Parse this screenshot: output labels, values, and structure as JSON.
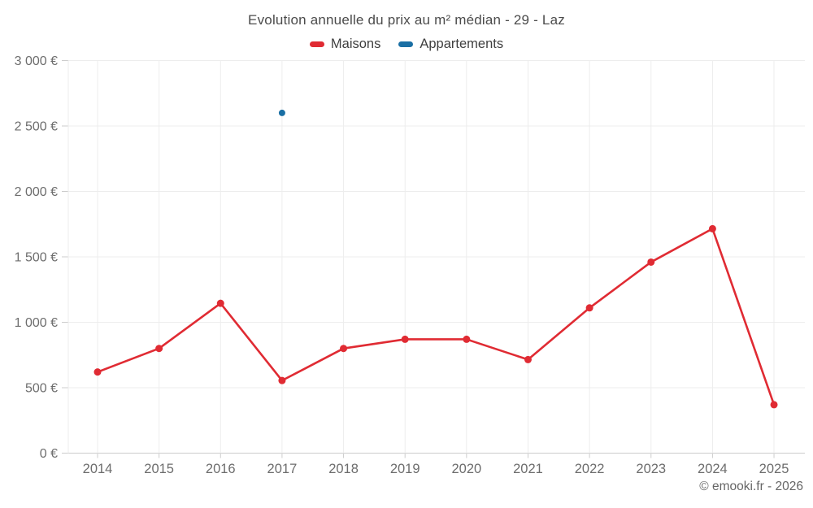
{
  "header": {
    "title": "Evolution annuelle du prix au m² médian - 29 - Laz"
  },
  "legend": [
    {
      "label": "Maisons",
      "color": "#e02b33"
    },
    {
      "label": "Appartements",
      "color": "#1a6fa4"
    }
  ],
  "footer": {
    "credit": "© emooki.fr - 2026"
  },
  "chart_data": {
    "type": "line",
    "title": "Evolution annuelle du prix au m² médian - 29 - Laz",
    "x": [
      2014,
      2015,
      2016,
      2017,
      2018,
      2019,
      2020,
      2021,
      2022,
      2023,
      2024,
      2025
    ],
    "series": [
      {
        "name": "Maisons",
        "color": "#e02b33",
        "marker_radius": 4.5,
        "values": [
          620,
          800,
          1145,
          555,
          800,
          870,
          870,
          715,
          1110,
          1460,
          1715,
          370
        ]
      },
      {
        "name": "Appartements",
        "color": "#1a6fa4",
        "marker_radius": 4,
        "values": [
          null,
          null,
          null,
          2600,
          null,
          null,
          null,
          null,
          null,
          null,
          null,
          null
        ]
      }
    ],
    "xlabel": "",
    "ylabel": "",
    "ylim": [
      0,
      3000
    ],
    "ytick_step": 500,
    "ytick_labels": [
      "0 €",
      "500 €",
      "1 000 €",
      "1 500 €",
      "2 000 €",
      "2 500 €",
      "3 000 €"
    ],
    "grid": true,
    "legend_position": "top",
    "currency": "EUR"
  }
}
